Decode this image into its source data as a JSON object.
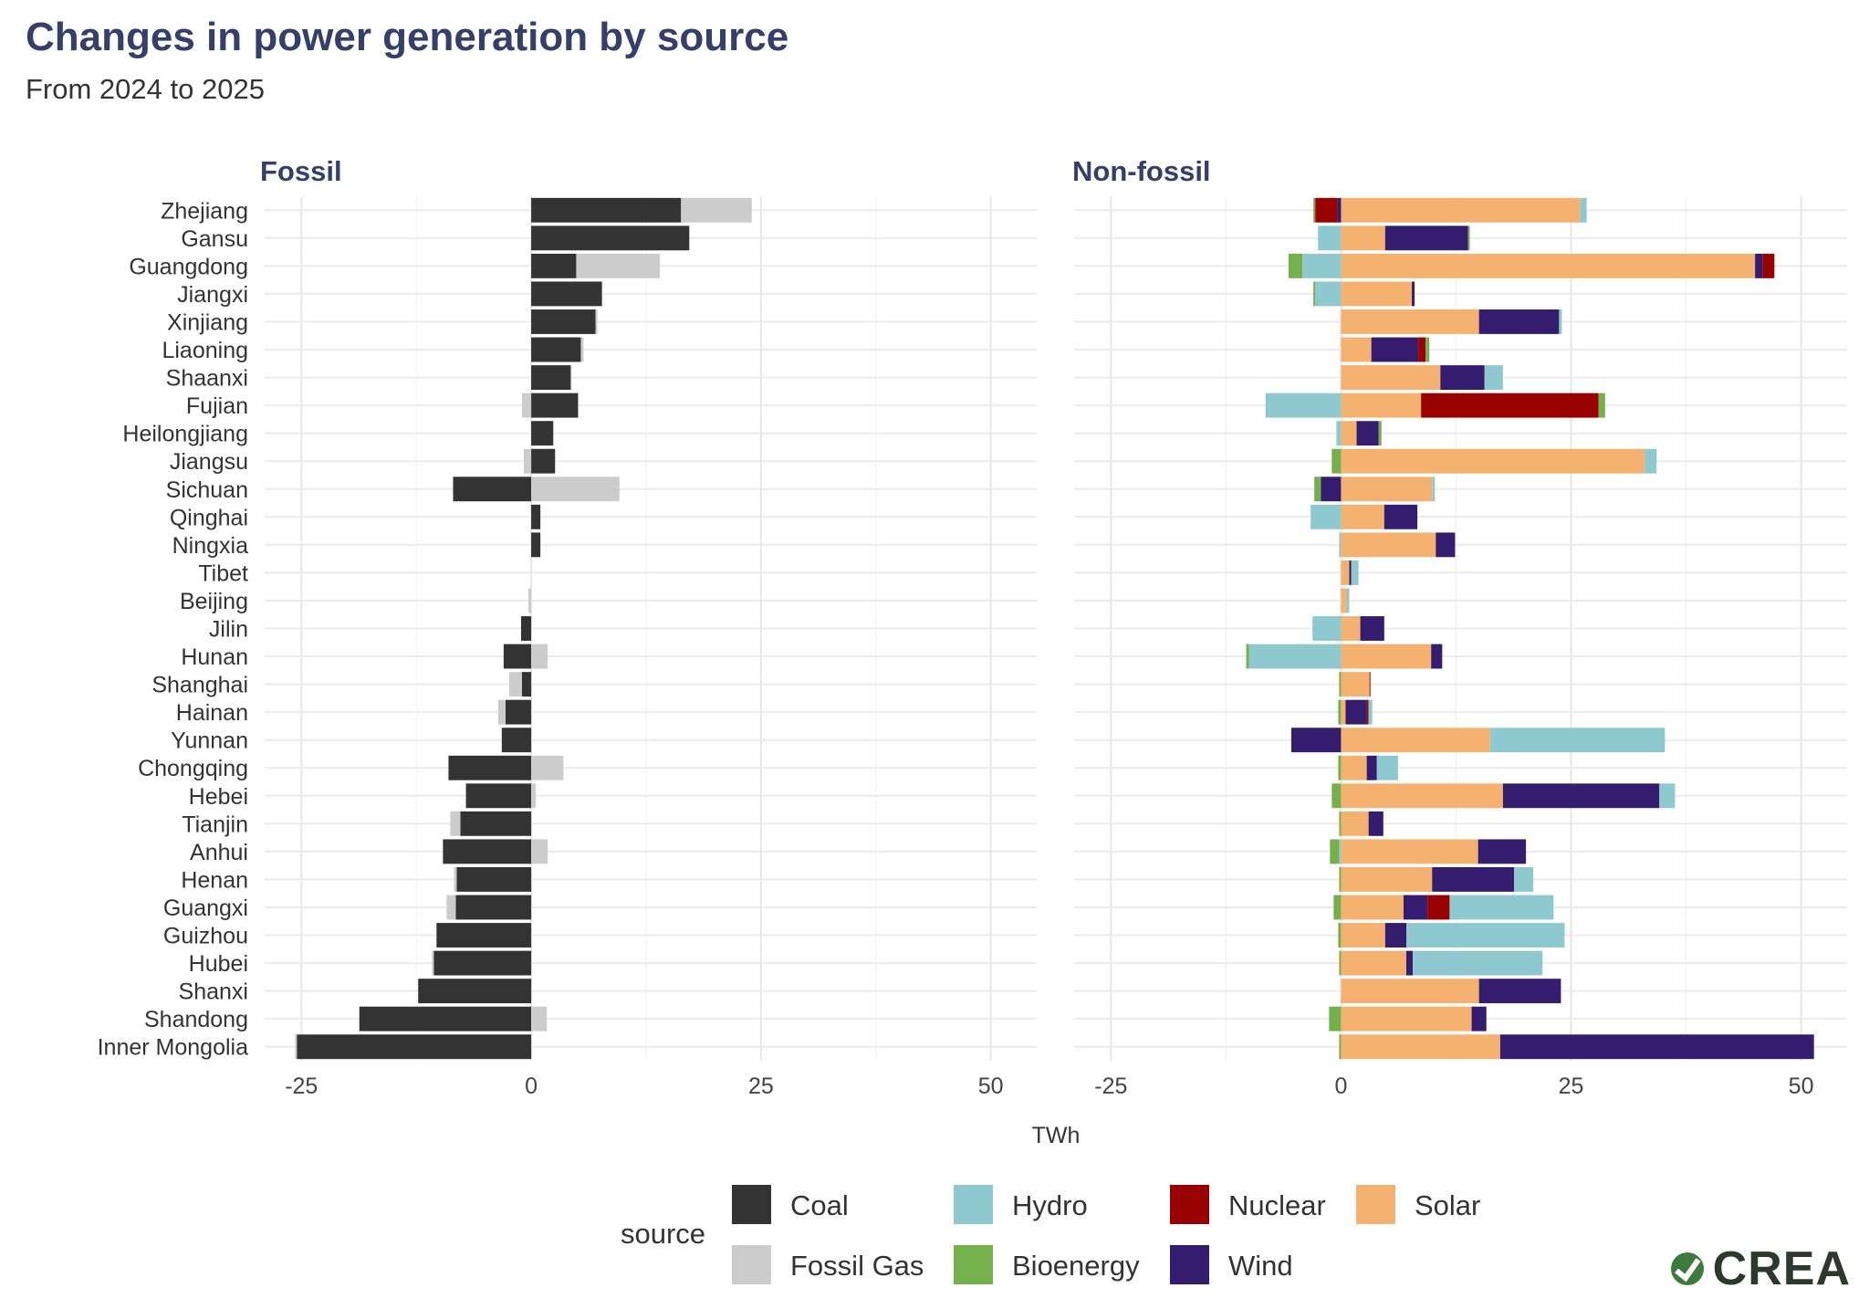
{
  "title": "Changes in power generation by source",
  "subtitle": "From 2024 to 2025",
  "logo_text": "CREA",
  "chart_data": {
    "type": "bar",
    "orientation": "horizontal",
    "stacked": true,
    "xlabel": "TWh",
    "legend_title": "source",
    "legend_position": "bottom",
    "grid": true,
    "xlim": [
      -29,
      55
    ],
    "x_ticks": [
      -25,
      0,
      25,
      50
    ],
    "x_tick_labels": [
      "-25",
      "0",
      "25",
      "50"
    ],
    "categories": [
      "Zhejiang",
      "Gansu",
      "Guangdong",
      "Jiangxi",
      "Xinjiang",
      "Liaoning",
      "Shaanxi",
      "Fujian",
      "Heilongjiang",
      "Jiangsu",
      "Sichuan",
      "Qinghai",
      "Ningxia",
      "Tibet",
      "Beijing",
      "Jilin",
      "Hunan",
      "Shanghai",
      "Hainan",
      "Yunnan",
      "Chongqing",
      "Hebei",
      "Tianjin",
      "Anhui",
      "Henan",
      "Guangxi",
      "Guizhou",
      "Hubei",
      "Shanxi",
      "Shandong",
      "Inner Mongolia"
    ],
    "legend": [
      {
        "name": "Coal",
        "color": "#333333"
      },
      {
        "name": "Hydro",
        "color": "#8fc9d0"
      },
      {
        "name": "Nuclear",
        "color": "#990000"
      },
      {
        "name": "Solar",
        "color": "#f5b16f"
      },
      {
        "name": "Fossil Gas",
        "color": "#cccccc"
      },
      {
        "name": "Bioenergy",
        "color": "#74b04c"
      },
      {
        "name": "Wind",
        "color": "#341c6e"
      }
    ],
    "panels": [
      {
        "title": "Fossil",
        "series": [
          {
            "name": "Coal",
            "color": "#333333",
            "values": [
              16.3,
              17.2,
              4.9,
              7.7,
              7.0,
              5.4,
              4.3,
              5.1,
              2.4,
              2.6,
              -8.5,
              1.0,
              1.0,
              0,
              0,
              -1.1,
              -3.0,
              -1.0,
              -2.8,
              -3.2,
              -9.0,
              -7.1,
              -7.7,
              -9.6,
              -8.1,
              -8.2,
              -10.3,
              -10.6,
              -12.3,
              -18.7,
              -25.5
            ]
          },
          {
            "name": "Fossil Gas",
            "color": "#cccccc",
            "values": [
              7.7,
              0,
              9.1,
              0,
              0.2,
              0.3,
              0.1,
              -1.0,
              0,
              -0.8,
              9.6,
              0,
              0,
              0,
              -0.3,
              0,
              1.8,
              -1.4,
              -0.8,
              0,
              3.5,
              0.5,
              -1.1,
              1.8,
              -0.3,
              -1.0,
              0,
              -0.2,
              0,
              1.7,
              -0.2
            ]
          }
        ]
      },
      {
        "title": "Non-fossil",
        "series": [
          {
            "name": "Solar",
            "color": "#f5b16f",
            "values": [
              26.0,
              4.8,
              45.0,
              7.7,
              15.0,
              3.3,
              10.8,
              8.7,
              1.7,
              33.0,
              9.9,
              4.7,
              10.3,
              0.9,
              0.6,
              2.1,
              9.8,
              3.1,
              0.5,
              16.2,
              2.8,
              17.6,
              3.0,
              14.9,
              9.9,
              6.8,
              4.8,
              7.1,
              15.0,
              14.2,
              17.3
            ]
          },
          {
            "name": "Wind",
            "color": "#341c6e",
            "values": [
              -0.4,
              9.0,
              0.8,
              0.3,
              8.7,
              5.1,
              4.8,
              0,
              2.4,
              0,
              -2.2,
              3.6,
              2.1,
              0.2,
              0,
              2.6,
              1.2,
              0,
              2.3,
              -5.4,
              1.1,
              17.0,
              1.6,
              5.2,
              8.9,
              2.6,
              2.3,
              0.7,
              8.9,
              1.6,
              34.1
            ]
          },
          {
            "name": "Nuclear",
            "color": "#990000",
            "values": [
              -2.4,
              0,
              1.3,
              0,
              0,
              0.8,
              0,
              19.3,
              0,
              0,
              0,
              0,
              0,
              0,
              0,
              0,
              0,
              0.1,
              0.2,
              0,
              0,
              0,
              0,
              0,
              0,
              2.4,
              0,
              0,
              0,
              0,
              0
            ]
          },
          {
            "name": "Hydro",
            "color": "#8fc9d0",
            "values": [
              0.7,
              -2.5,
              -4.2,
              -2.8,
              0.3,
              0,
              2.0,
              -8.2,
              -0.5,
              1.3,
              0.3,
              -3.3,
              -0.2,
              0.8,
              0.3,
              -3.1,
              -10.0,
              0,
              0.4,
              19.0,
              2.3,
              1.7,
              0,
              -0.2,
              2.1,
              11.3,
              17.2,
              14.1,
              0,
              0,
              0
            ]
          },
          {
            "name": "Bioenergy",
            "color": "#74b04c",
            "values": [
              -0.2,
              0.2,
              -1.5,
              -0.2,
              0,
              0.4,
              0,
              0.7,
              0.3,
              -1.0,
              -0.7,
              0,
              0,
              0,
              0,
              0,
              -0.3,
              -0.2,
              -0.3,
              0,
              -0.3,
              -1.0,
              -0.2,
              -1.0,
              -0.2,
              -0.8,
              -0.3,
              -0.2,
              0,
              -1.3,
              -0.2
            ]
          }
        ]
      }
    ]
  }
}
